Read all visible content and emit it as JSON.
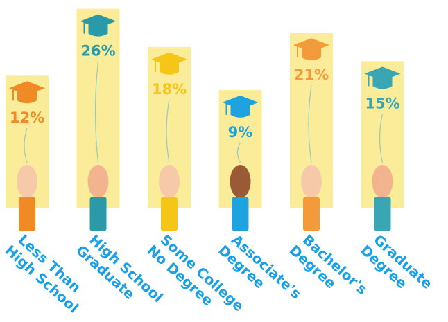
{
  "chart_data": {
    "type": "bar",
    "categories": [
      [
        "Less Than",
        "High School"
      ],
      [
        "High School",
        "Graduate"
      ],
      [
        "Some College",
        "No Degree"
      ],
      [
        "Associate's",
        "Degree"
      ],
      [
        "Bachelor's",
        "Degree"
      ],
      [
        "Graduate",
        "Degree"
      ]
    ],
    "values": [
      12,
      26,
      18,
      9,
      21,
      15
    ],
    "value_labels": [
      "12%",
      "26%",
      "18%",
      "9%",
      "21%",
      "15%"
    ],
    "colors": [
      "#f08a24",
      "#2a9aa8",
      "#f5c518",
      "#1fa3e0",
      "#f39a3a",
      "#3aa6b4"
    ],
    "bar_color": "#fbec9a",
    "label_color": "#1aa0e6"
  }
}
